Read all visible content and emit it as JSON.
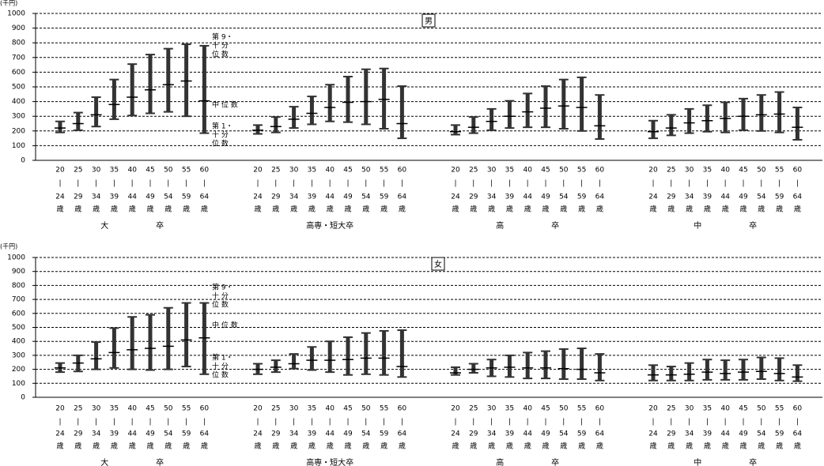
{
  "chart_data": [
    {
      "type": "range",
      "title": "男",
      "y_label": "(千円)",
      "ylim": [
        0,
        1000
      ],
      "yticks": [
        0,
        100,
        200,
        300,
        400,
        500,
        600,
        700,
        800,
        900,
        1000
      ],
      "grid": true,
      "color": "#333333",
      "categories": [
        [
          "20",
          "|",
          "24",
          "歳"
        ],
        [
          "25",
          "|",
          "29",
          "歳"
        ],
        [
          "30",
          "|",
          "34",
          "歳"
        ],
        [
          "35",
          "|",
          "39",
          "歳"
        ],
        [
          "40",
          "|",
          "44",
          "歳"
        ],
        [
          "45",
          "|",
          "49",
          "歳"
        ],
        [
          "50",
          "|",
          "54",
          "歳"
        ],
        [
          "55",
          "|",
          "59",
          "歳"
        ],
        [
          "60",
          "|",
          "64",
          "歳"
        ]
      ],
      "annotations": [
        [
          "第 9・",
          "十 分",
          "位 数"
        ],
        [
          "中 位 数"
        ],
        [
          "第 1・",
          "十 分",
          "位 数"
        ]
      ],
      "groups": [
        {
          "name": "大　　　　　　卒",
          "d1": [
            190,
            205,
            230,
            280,
            305,
            320,
            330,
            300,
            185
          ],
          "median": [
            220,
            250,
            310,
            380,
            430,
            480,
            515,
            540,
            405
          ],
          "d9": [
            265,
            325,
            430,
            550,
            655,
            720,
            760,
            790,
            780
          ]
        },
        {
          "name": "高専・短大卒",
          "d1": [
            180,
            190,
            220,
            245,
            265,
            260,
            245,
            215,
            150
          ],
          "median": [
            205,
            230,
            280,
            320,
            360,
            395,
            400,
            415,
            250
          ],
          "d9": [
            240,
            295,
            365,
            435,
            515,
            570,
            620,
            625,
            505
          ]
        },
        {
          "name": "高　　　　　　卒",
          "d1": [
            175,
            185,
            205,
            220,
            225,
            225,
            215,
            200,
            145
          ],
          "median": [
            195,
            225,
            265,
            300,
            330,
            355,
            370,
            360,
            235
          ],
          "d9": [
            240,
            295,
            350,
            405,
            455,
            505,
            550,
            565,
            445
          ]
        },
        {
          "name": "中　　　　　　卒",
          "d1": [
            150,
            170,
            185,
            195,
            190,
            205,
            200,
            190,
            140
          ],
          "median": [
            195,
            220,
            255,
            270,
            285,
            300,
            310,
            315,
            225
          ],
          "d9": [
            270,
            310,
            350,
            375,
            395,
            420,
            445,
            465,
            360
          ]
        }
      ]
    },
    {
      "type": "range",
      "title": "女",
      "y_label": "(千円)",
      "ylim": [
        0,
        1000
      ],
      "yticks": [
        0,
        100,
        200,
        300,
        400,
        500,
        600,
        700,
        800,
        900,
        1000
      ],
      "grid": true,
      "color": "#333333",
      "categories": [
        [
          "20",
          "|",
          "24",
          "歳"
        ],
        [
          "25",
          "|",
          "29",
          "歳"
        ],
        [
          "30",
          "|",
          "34",
          "歳"
        ],
        [
          "35",
          "|",
          "39",
          "歳"
        ],
        [
          "40",
          "|",
          "44",
          "歳"
        ],
        [
          "45",
          "|",
          "49",
          "歳"
        ],
        [
          "50",
          "|",
          "54",
          "歳"
        ],
        [
          "55",
          "|",
          "59",
          "歳"
        ],
        [
          "60",
          "|",
          "64",
          "歳"
        ]
      ],
      "annotations": [
        [
          "第 9・",
          "十 分",
          "位 数"
        ],
        [
          "中 位 数"
        ],
        [
          "第 1・",
          "十 分",
          "位 数"
        ]
      ],
      "groups": [
        {
          "name": "大　　　　　　卒",
          "d1": [
            180,
            185,
            200,
            210,
            200,
            195,
            200,
            220,
            165
          ],
          "median": [
            210,
            245,
            275,
            320,
            340,
            350,
            365,
            410,
            425
          ],
          "d9": [
            245,
            300,
            395,
            495,
            575,
            590,
            640,
            675,
            675
          ]
        },
        {
          "name": "高専・短大卒",
          "d1": [
            165,
            180,
            205,
            195,
            180,
            160,
            165,
            160,
            145
          ],
          "median": [
            200,
            215,
            240,
            265,
            265,
            270,
            280,
            280,
            220
          ],
          "d9": [
            240,
            265,
            310,
            360,
            400,
            430,
            460,
            475,
            480
          ]
        },
        {
          "name": "高　　　　　　卒",
          "d1": [
            160,
            175,
            150,
            145,
            135,
            135,
            130,
            130,
            120
          ],
          "median": [
            175,
            200,
            210,
            215,
            210,
            210,
            205,
            200,
            175
          ],
          "d9": [
            215,
            240,
            270,
            300,
            320,
            330,
            345,
            350,
            310
          ]
        },
        {
          "name": "中　　　　　　卒",
          "d1": [
            120,
            120,
            120,
            125,
            125,
            125,
            130,
            120,
            115
          ],
          "median": [
            160,
            160,
            165,
            180,
            170,
            180,
            185,
            170,
            145
          ],
          "d9": [
            230,
            220,
            245,
            270,
            265,
            270,
            285,
            280,
            230
          ]
        }
      ]
    }
  ]
}
